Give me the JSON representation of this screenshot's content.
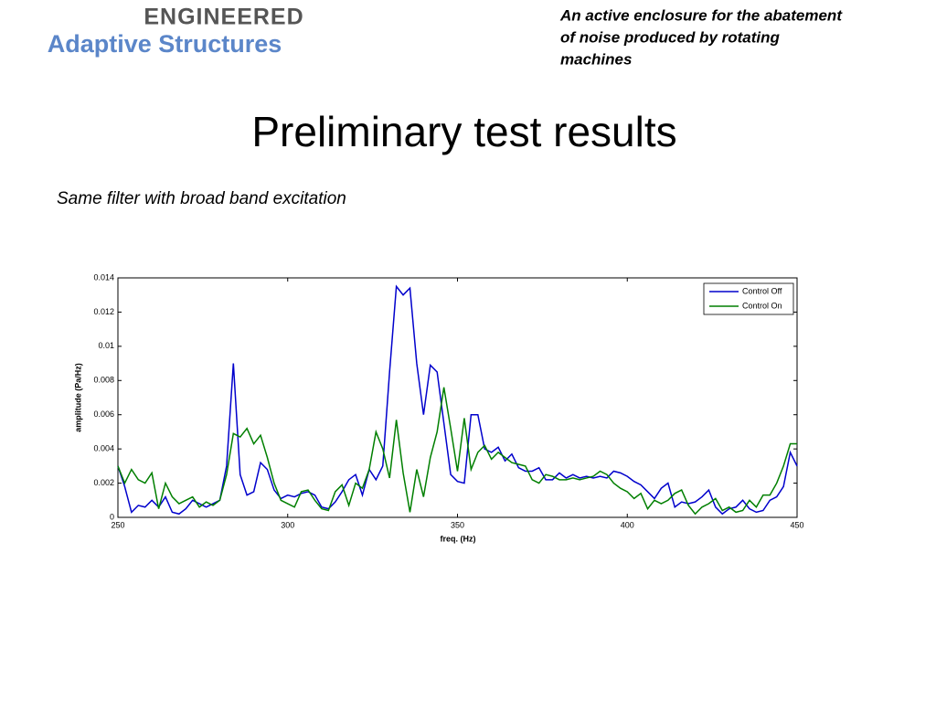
{
  "logo": {
    "top": "ENGINEERED",
    "bottom": "Adaptive Structures"
  },
  "header": [
    "An active enclosure for the abatement",
    "of noise produced by rotating",
    "machines"
  ],
  "title": "Preliminary test results",
  "subtitle": "Same filter with broad band excitation",
  "chart_data": {
    "type": "line",
    "x_label": "freq. (Hz)",
    "y_label": "amplitude (Pa/Hz)",
    "x": [
      250,
      252,
      254,
      256,
      258,
      260,
      262,
      264,
      266,
      268,
      270,
      272,
      274,
      276,
      278,
      280,
      282,
      284,
      286,
      288,
      290,
      292,
      294,
      296,
      298,
      300,
      302,
      304,
      306,
      308,
      310,
      312,
      314,
      316,
      318,
      320,
      322,
      324,
      326,
      328,
      330,
      332,
      334,
      336,
      338,
      340,
      342,
      344,
      346,
      348,
      350,
      352,
      354,
      356,
      358,
      360,
      362,
      364,
      366,
      368,
      370,
      372,
      374,
      376,
      378,
      380,
      382,
      384,
      386,
      388,
      390,
      392,
      394,
      396,
      398,
      400,
      402,
      404,
      406,
      408,
      410,
      412,
      414,
      416,
      418,
      420,
      422,
      424,
      426,
      428,
      430,
      432,
      434,
      436,
      438,
      440,
      442,
      444,
      446,
      448,
      450
    ],
    "series": [
      {
        "name": "Control Off",
        "color": "#0000cc",
        "values": [
          0.003,
          0.0018,
          0.0003,
          0.0007,
          0.0006,
          0.001,
          0.0006,
          0.0012,
          0.0003,
          0.0002,
          0.0005,
          0.001,
          0.0008,
          0.0006,
          0.0008,
          0.001,
          0.003,
          0.009,
          0.0025,
          0.0013,
          0.0015,
          0.0032,
          0.0028,
          0.0016,
          0.0011,
          0.0013,
          0.0012,
          0.0014,
          0.0015,
          0.0013,
          0.0006,
          0.0005,
          0.0009,
          0.0015,
          0.0022,
          0.0025,
          0.0013,
          0.0028,
          0.0022,
          0.003,
          0.0085,
          0.0135,
          0.013,
          0.0134,
          0.009,
          0.006,
          0.0089,
          0.0085,
          0.0055,
          0.0025,
          0.0021,
          0.002,
          0.006,
          0.006,
          0.004,
          0.0038,
          0.0041,
          0.0033,
          0.0037,
          0.0029,
          0.0027,
          0.0027,
          0.0029,
          0.0022,
          0.0022,
          0.0026,
          0.0023,
          0.0025,
          0.0023,
          0.0024,
          0.0023,
          0.0024,
          0.0023,
          0.0027,
          0.0026,
          0.0024,
          0.0021,
          0.0019,
          0.0015,
          0.0011,
          0.0017,
          0.002,
          0.0006,
          0.0009,
          0.0008,
          0.0009,
          0.0012,
          0.0016,
          0.0006,
          0.0002,
          0.0005,
          0.0006,
          0.001,
          0.0005,
          0.0003,
          0.0004,
          0.001,
          0.0012,
          0.0018,
          0.0038,
          0.003
        ]
      },
      {
        "name": "Control On",
        "color": "#007f00",
        "values": [
          0.003,
          0.002,
          0.0028,
          0.0022,
          0.002,
          0.0026,
          0.0005,
          0.002,
          0.0012,
          0.0008,
          0.001,
          0.0012,
          0.0006,
          0.0009,
          0.0007,
          0.001,
          0.0025,
          0.0049,
          0.0047,
          0.0052,
          0.0043,
          0.0048,
          0.0035,
          0.002,
          0.001,
          0.0008,
          0.0006,
          0.0015,
          0.0016,
          0.001,
          0.0005,
          0.0004,
          0.0015,
          0.0019,
          0.0007,
          0.002,
          0.0017,
          0.0028,
          0.005,
          0.004,
          0.0023,
          0.0057,
          0.0026,
          0.0003,
          0.0028,
          0.0012,
          0.0035,
          0.005,
          0.0076,
          0.0052,
          0.0027,
          0.0058,
          0.0028,
          0.0038,
          0.0042,
          0.0034,
          0.0038,
          0.0035,
          0.0032,
          0.0031,
          0.003,
          0.0022,
          0.002,
          0.0025,
          0.0024,
          0.0022,
          0.0022,
          0.0023,
          0.0022,
          0.0023,
          0.0024,
          0.0027,
          0.0025,
          0.002,
          0.0017,
          0.0015,
          0.0011,
          0.0014,
          0.0005,
          0.001,
          0.0008,
          0.001,
          0.0014,
          0.0016,
          0.0007,
          0.0002,
          0.0006,
          0.0008,
          0.0011,
          0.0004,
          0.0006,
          0.0003,
          0.0004,
          0.001,
          0.0006,
          0.0013,
          0.0013,
          0.002,
          0.003,
          0.0043,
          0.0043
        ]
      }
    ],
    "xlim": [
      250,
      450
    ],
    "xticks": [
      250,
      300,
      350,
      400,
      450
    ],
    "ylim": [
      0,
      0.014
    ],
    "yticks": [
      0,
      0.002,
      0.004,
      0.006,
      0.008,
      0.01,
      0.012,
      0.014
    ],
    "legend": "upper right",
    "grid": false
  }
}
